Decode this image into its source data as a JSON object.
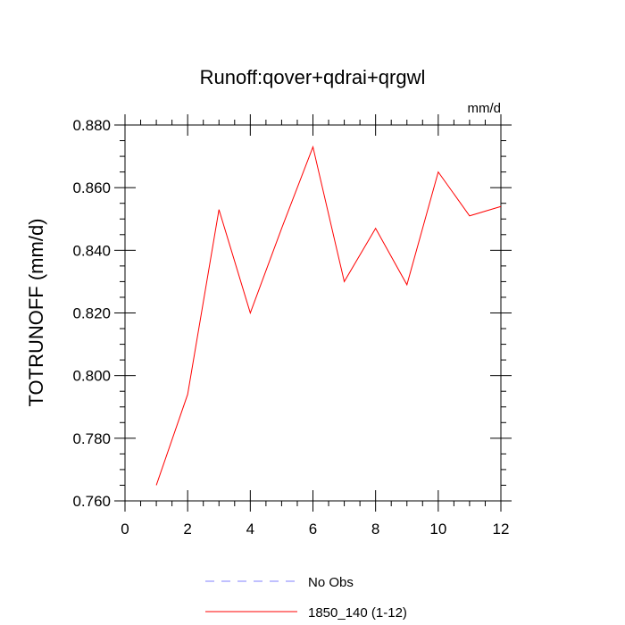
{
  "chart_data": {
    "type": "line",
    "title": "Runoff:qover+qdrai+qrgwl",
    "units": "mm/d",
    "ylabel": "TOTRUNOFF  (mm/d)",
    "xlabel": "",
    "xlim": [
      0,
      12
    ],
    "ylim": [
      0.76,
      0.88
    ],
    "x_ticks": [
      0,
      2,
      4,
      6,
      8,
      10,
      12
    ],
    "x_tick_labels": [
      "0",
      "2",
      "4",
      "6",
      "8",
      "10",
      "12"
    ],
    "y_ticks": [
      0.76,
      0.78,
      0.8,
      0.82,
      0.84,
      0.86,
      0.88
    ],
    "y_tick_labels": [
      "0.760",
      "0.780",
      "0.800",
      "0.820",
      "0.840",
      "0.860",
      "0.880"
    ],
    "grid": false,
    "legend_position": "bottom-center",
    "series": [
      {
        "name": "No Obs",
        "color": "#8080ff",
        "style": "dashed",
        "x": [],
        "values": []
      },
      {
        "name": "1850_140 (1-12)",
        "color": "#ff0000",
        "style": "solid",
        "x": [
          1,
          2,
          3,
          4,
          5,
          6,
          7,
          8,
          9,
          10,
          11,
          12
        ],
        "values": [
          0.765,
          0.794,
          0.853,
          0.82,
          0.847,
          0.873,
          0.83,
          0.847,
          0.829,
          0.865,
          0.851,
          0.854
        ]
      }
    ]
  }
}
